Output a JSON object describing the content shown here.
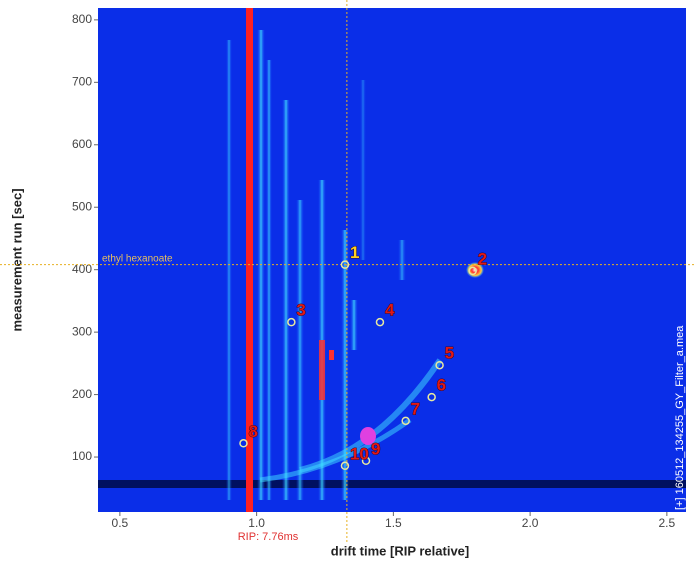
{
  "chart_data": {
    "type": "scatter",
    "x_label": "drift time [RIP relative]",
    "y_label": "measurement run [sec]",
    "xlim": [
      0.42,
      2.57
    ],
    "ylim": [
      12,
      819
    ],
    "xticks": [
      0.5,
      {
        "value": 1,
        "label": "1.0"
      },
      1.5,
      {
        "value": 2,
        "label": "2.0"
      },
      2.5
    ],
    "yticks": [
      100,
      200,
      300,
      400,
      500,
      600,
      700,
      800
    ],
    "points": {
      "x": [
        1.323,
        1.79,
        1.127,
        1.451,
        1.669,
        1.64,
        1.545,
        0.952,
        1.4,
        1.323
      ],
      "y": [
        408,
        398,
        316,
        316,
        247,
        196,
        158,
        122,
        94,
        86
      ],
      "labels": [
        "1",
        "2",
        "3",
        "4",
        "5",
        "6",
        "7",
        "8",
        "9",
        "10"
      ],
      "color": "#e8e8a0"
    },
    "crosshair": {
      "x": 1.33,
      "y": 408,
      "color": "#e8b020"
    },
    "crosshair_label": "ethyl hexanoate",
    "rip_label": "RIP: 7.76ms",
    "file_label": "[+] 160512_134255_GY_Filter_a.mea"
  }
}
